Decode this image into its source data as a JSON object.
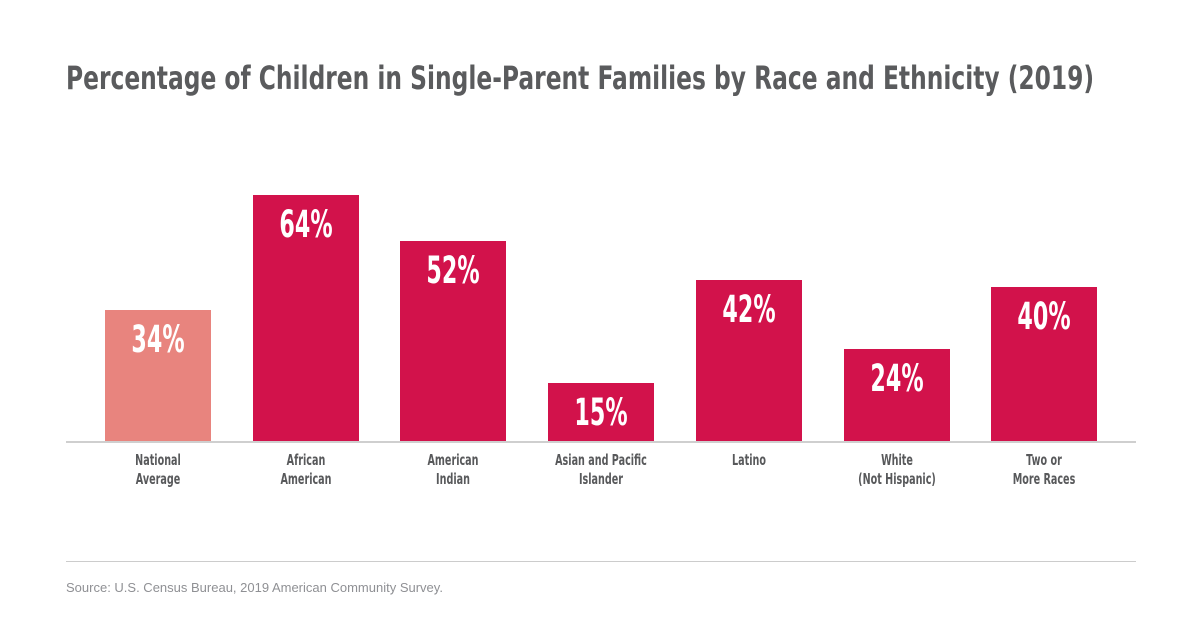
{
  "colors": {
    "background": "#FFFFFF",
    "primary_bar": "#D2124B",
    "highlight_bar": "#E8847E",
    "value_label_text": "#FFFFFF",
    "title_text": "#5A5B5D",
    "category_label_text": "#58595B",
    "axis_line": "#CFCFCF",
    "divider_line": "#CCCCCC",
    "source_text": "#8F9094"
  },
  "chart_data": {
    "type": "bar",
    "title": "Percentage of Children in Single-Parent Families by Race and Ethnicity (2019)",
    "categories": [
      "National Average",
      "African American",
      "American Indian",
      "Asian and Pacific Islander",
      "Latino",
      "White (Not Hispanic)",
      "Two or More Races"
    ],
    "category_lines": [
      [
        "National",
        "Average"
      ],
      [
        "African",
        "American"
      ],
      [
        "American",
        "Indian"
      ],
      [
        "Asian and Pacific",
        "Islander"
      ],
      [
        "Latino"
      ],
      [
        "White",
        "(Not Hispanic)"
      ],
      [
        "Two or",
        "More Races"
      ]
    ],
    "values": [
      34,
      64,
      52,
      15,
      42,
      24,
      40
    ],
    "value_labels": [
      "34%",
      "64%",
      "52%",
      "15%",
      "42%",
      "24%",
      "40%"
    ],
    "unit": "%",
    "ylim": [
      0,
      70
    ],
    "y_axis_visible": false,
    "grid": false,
    "legend": false,
    "highlight_index": 0,
    "highlight_meaning": "National Average bar shown in lighter color",
    "source": "Source: U.S. Census Bureau, 2019 American Community Survey."
  }
}
